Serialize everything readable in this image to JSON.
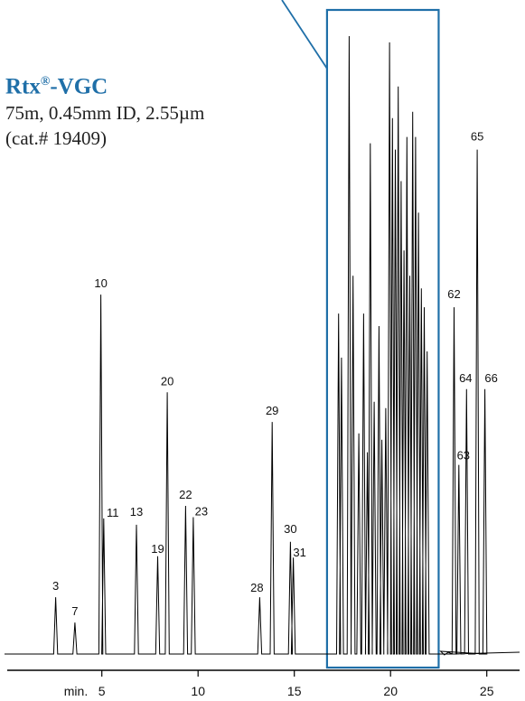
{
  "column": {
    "name": "Rtx",
    "reg": "®",
    "suffix": "-VGC",
    "spec_line1": "75m, 0.45mm ID, 2.55µm",
    "spec_line2": "(cat.# 19409)"
  },
  "colors": {
    "accent": "#1f6fa8",
    "trace": "#000000"
  },
  "chart_data": {
    "type": "line",
    "title": "",
    "xlabel": "min.",
    "ylabel": "",
    "xlim": [
      0,
      27.5
    ],
    "ylim": [
      0,
      100
    ],
    "x_ticks": [
      5,
      10,
      15,
      20,
      25
    ],
    "x_tick_labels": [
      "5",
      "10",
      "15",
      "20",
      "25"
    ],
    "highlight_window": [
      16.7,
      22.5
    ],
    "labeled_peaks": [
      {
        "label": "3",
        "time": 2.6,
        "height": 9.0
      },
      {
        "label": "7",
        "time": 3.6,
        "height": 5.0
      },
      {
        "label": "10",
        "time": 4.95,
        "height": 57.0
      },
      {
        "label": "11",
        "time": 5.1,
        "height": 21.5
      },
      {
        "label": "13",
        "time": 6.8,
        "height": 20.5
      },
      {
        "label": "19",
        "time": 7.9,
        "height": 15.5
      },
      {
        "label": "20",
        "time": 8.4,
        "height": 41.5
      },
      {
        "label": "22",
        "time": 9.35,
        "height": 23.5
      },
      {
        "label": "23",
        "time": 9.75,
        "height": 21.7
      },
      {
        "label": "28",
        "time": 13.2,
        "height": 9.0
      },
      {
        "label": "29",
        "time": 13.85,
        "height": 36.8
      },
      {
        "label": "30",
        "time": 14.8,
        "height": 17.8
      },
      {
        "label": "31",
        "time": 14.95,
        "height": 15.3
      },
      {
        "label": "62",
        "time": 23.3,
        "height": 55.0
      },
      {
        "label": "63",
        "time": 23.55,
        "height": 30.0
      },
      {
        "label": "64",
        "time": 23.95,
        "height": 42.0
      },
      {
        "label": "65",
        "time": 24.5,
        "height": 80.0
      },
      {
        "label": "66",
        "time": 24.9,
        "height": 42.0
      }
    ],
    "unlabeled_peaks": [
      {
        "time": 17.3,
        "height": 54.0
      },
      {
        "time": 17.45,
        "height": 47.0
      },
      {
        "time": 17.85,
        "height": 98.0
      },
      {
        "time": 18.05,
        "height": 60.0
      },
      {
        "time": 18.35,
        "height": 35.0
      },
      {
        "time": 18.6,
        "height": 54.0
      },
      {
        "time": 18.8,
        "height": 32.0
      },
      {
        "time": 18.95,
        "height": 81.0
      },
      {
        "time": 19.15,
        "height": 40.0
      },
      {
        "time": 19.4,
        "height": 52.0
      },
      {
        "time": 19.55,
        "height": 34.0
      },
      {
        "time": 19.75,
        "height": 39.0
      },
      {
        "time": 19.95,
        "height": 97.0
      },
      {
        "time": 20.1,
        "height": 85.0
      },
      {
        "time": 20.25,
        "height": 80.0
      },
      {
        "time": 20.4,
        "height": 90.0
      },
      {
        "time": 20.55,
        "height": 75.0
      },
      {
        "time": 20.7,
        "height": 64.0
      },
      {
        "time": 20.85,
        "height": 82.0
      },
      {
        "time": 21.0,
        "height": 60.0
      },
      {
        "time": 21.15,
        "height": 86.0
      },
      {
        "time": 21.3,
        "height": 82.0
      },
      {
        "time": 21.45,
        "height": 70.0
      },
      {
        "time": 21.6,
        "height": 58.0
      },
      {
        "time": 21.75,
        "height": 55.0
      },
      {
        "time": 21.9,
        "height": 48.0
      }
    ]
  }
}
